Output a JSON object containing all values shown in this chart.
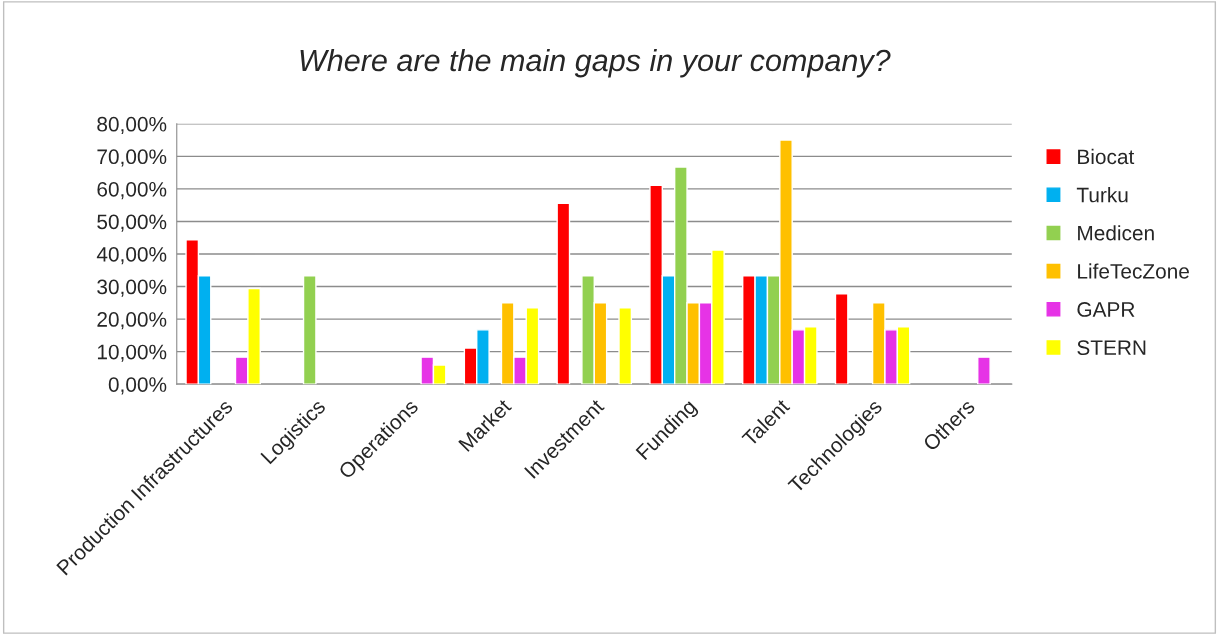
{
  "chart_data": {
    "type": "bar",
    "title": "Where are the main gaps in your company?",
    "categories": [
      "Production Infrastructures",
      "Logistics",
      "Operations",
      "Market",
      "Investment",
      "Funding",
      "Talent",
      "Technologies",
      "Others"
    ],
    "series": [
      {
        "name": "Biocat",
        "color": "#ff0000",
        "values": [
          44.4,
          null,
          null,
          11.1,
          55.6,
          61.1,
          33.3,
          27.8,
          null
        ]
      },
      {
        "name": "Turku",
        "color": "#00b0f0",
        "values": [
          33.3,
          null,
          null,
          16.7,
          null,
          33.3,
          33.3,
          null,
          null
        ]
      },
      {
        "name": "Medicen",
        "color": "#92d050",
        "values": [
          null,
          33.3,
          null,
          null,
          33.3,
          66.7,
          33.3,
          null,
          null
        ]
      },
      {
        "name": "LifeTecZone",
        "color": "#ffc000",
        "values": [
          null,
          null,
          null,
          25,
          25,
          25,
          75,
          25,
          null
        ]
      },
      {
        "name": "GAPR",
        "color": "#e633e6",
        "values": [
          8.3,
          null,
          8.3,
          8.3,
          null,
          25,
          16.7,
          16.7,
          8.3
        ]
      },
      {
        "name": "STERN",
        "color": "#ffff00",
        "values": [
          29.4,
          null,
          5.9,
          23.5,
          23.5,
          41.2,
          17.6,
          17.6,
          null
        ]
      }
    ],
    "ylim": [
      0,
      80
    ],
    "yticks": [
      {
        "value": 0,
        "label": "0,00%"
      },
      {
        "value": 10,
        "label": "10,00%"
      },
      {
        "value": 20,
        "label": "20,00%"
      },
      {
        "value": 30,
        "label": "30,00%"
      },
      {
        "value": 40,
        "label": "40,00%"
      },
      {
        "value": 50,
        "label": "50,00%"
      },
      {
        "value": 60,
        "label": "60,00%"
      },
      {
        "value": 70,
        "label": "70,00%"
      },
      {
        "value": 80,
        "label": "80,00%"
      }
    ],
    "grid": "y",
    "legend": "right"
  }
}
